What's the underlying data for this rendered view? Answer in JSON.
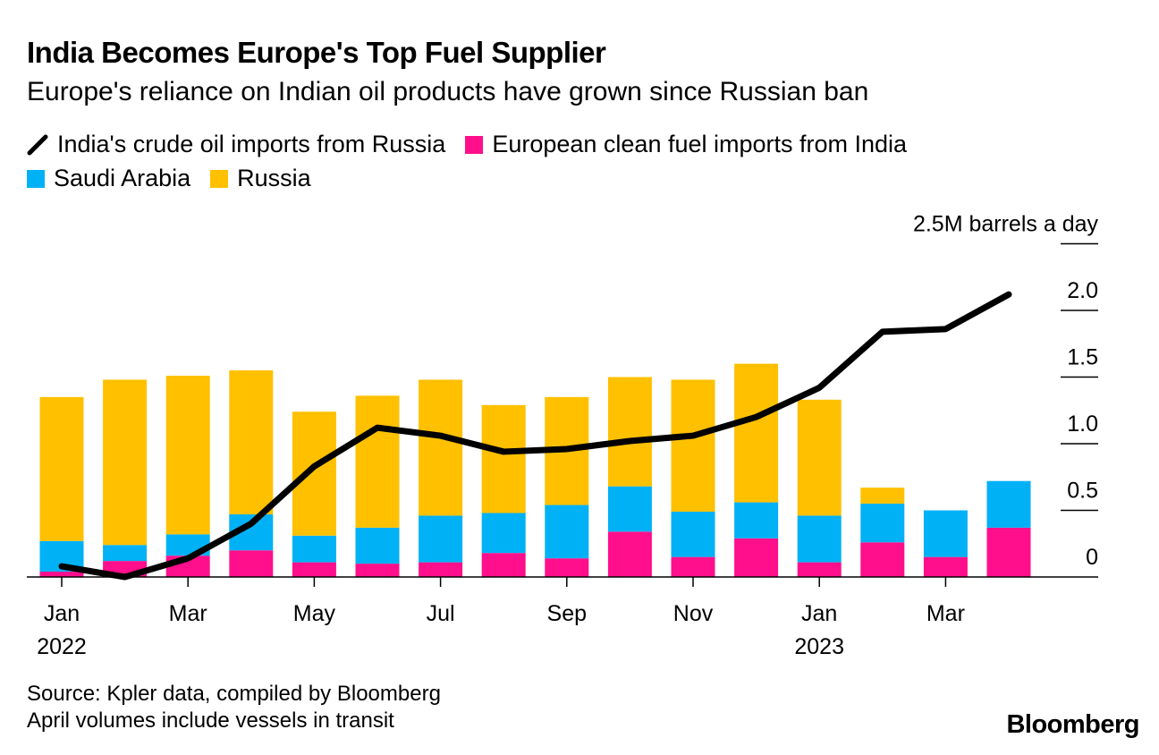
{
  "header": {
    "title": "India Becomes Europe's Top Fuel Supplier",
    "subtitle": "Europe's reliance on Indian oil products have grown since Russian ban"
  },
  "legend": {
    "line": "India's crude oil imports from Russia",
    "india": "European clean fuel imports from India",
    "saudi": "Saudi Arabia",
    "russia": "Russia"
  },
  "colors": {
    "india": "#ff0f8b",
    "saudi": "#00b1f5",
    "russia": "#ffc000",
    "line": "#000000"
  },
  "chart_data": {
    "type": "bar",
    "stacked": true,
    "unit_label": "2.5M barrels a day",
    "ylim": [
      0,
      2.5
    ],
    "yticks": [
      {
        "value": 0,
        "label": "0"
      },
      {
        "value": 0.5,
        "label": "0.5"
      },
      {
        "value": 1.0,
        "label": "1.0"
      },
      {
        "value": 1.5,
        "label": "1.5"
      },
      {
        "value": 2.0,
        "label": "2.0"
      }
    ],
    "months": [
      "Jan 2022",
      "Feb 2022",
      "Mar 2022",
      "Apr 2022",
      "May 2022",
      "Jun 2022",
      "Jul 2022",
      "Aug 2022",
      "Sep 2022",
      "Oct 2022",
      "Nov 2022",
      "Dec 2022",
      "Jan 2023",
      "Feb 2023",
      "Mar 2023",
      "Apr 2023"
    ],
    "xticks": [
      {
        "index": 0,
        "label": "Jan",
        "sub": "2022"
      },
      {
        "index": 2,
        "label": "Mar",
        "sub": ""
      },
      {
        "index": 4,
        "label": "May",
        "sub": ""
      },
      {
        "index": 6,
        "label": "Jul",
        "sub": ""
      },
      {
        "index": 8,
        "label": "Sep",
        "sub": ""
      },
      {
        "index": 10,
        "label": "Nov",
        "sub": ""
      },
      {
        "index": 12,
        "label": "Jan",
        "sub": "2023"
      },
      {
        "index": 14,
        "label": "Mar",
        "sub": ""
      }
    ],
    "series": [
      {
        "name": "European clean fuel imports from India",
        "key": "india",
        "values": [
          0.04,
          0.12,
          0.16,
          0.2,
          0.11,
          0.1,
          0.11,
          0.18,
          0.14,
          0.34,
          0.15,
          0.29,
          0.11,
          0.26,
          0.15,
          0.37
        ]
      },
      {
        "name": "Saudi Arabia",
        "key": "saudi",
        "values": [
          0.23,
          0.12,
          0.16,
          0.27,
          0.2,
          0.27,
          0.35,
          0.3,
          0.4,
          0.34,
          0.34,
          0.27,
          0.35,
          0.29,
          0.35,
          0.35
        ]
      },
      {
        "name": "Russia",
        "key": "russia",
        "values": [
          1.08,
          1.24,
          1.19,
          1.08,
          0.93,
          0.99,
          1.02,
          0.81,
          0.81,
          0.82,
          0.99,
          1.04,
          0.87,
          0.12,
          0.0,
          0.0
        ]
      }
    ],
    "line": {
      "name": "India's crude oil imports from Russia",
      "values": [
        0.08,
        0.0,
        0.14,
        0.4,
        0.83,
        1.12,
        1.06,
        0.94,
        0.96,
        1.02,
        1.06,
        1.2,
        1.42,
        1.84,
        1.86,
        2.12
      ]
    }
  },
  "footer": {
    "source": "Source: Kpler data, compiled by Bloomberg",
    "note": "April volumes include vessels in transit",
    "brand": "Bloomberg"
  }
}
